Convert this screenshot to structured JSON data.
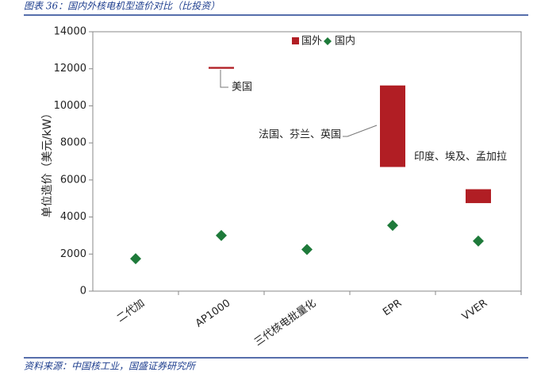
{
  "header": {
    "title": "图表 36：国内外核电机型造价对比（比投资）"
  },
  "chart_data": {
    "type": "floating_bar",
    "ylabel": "单位造价（美元/kW）",
    "categories": [
      "二代加",
      "AP1000",
      "三代核电批量化",
      "EPR",
      "VVER"
    ],
    "series": [
      {
        "name": "国外",
        "color": "#b11e24",
        "low": [
          null,
          12000,
          null,
          6700,
          4750
        ],
        "high": [
          null,
          12100,
          null,
          11100,
          5500
        ]
      },
      {
        "name": "国内",
        "color": "#1e7a3a",
        "values": [
          1750,
          3000,
          2250,
          3550,
          2700
        ]
      }
    ],
    "annotations": [
      {
        "text": "美国",
        "category": 1
      },
      {
        "text": "法国、芬兰、英国",
        "category": 3
      },
      {
        "text": "印度、埃及、孟加拉",
        "category": 4
      }
    ],
    "ylim": [
      0,
      14000
    ],
    "yticks": [
      0,
      2000,
      4000,
      6000,
      8000,
      10000,
      12000,
      14000
    ],
    "grid": false,
    "legend": "top"
  },
  "footer": {
    "source": "资料来源：中国核工业，国盛证券研究所"
  }
}
